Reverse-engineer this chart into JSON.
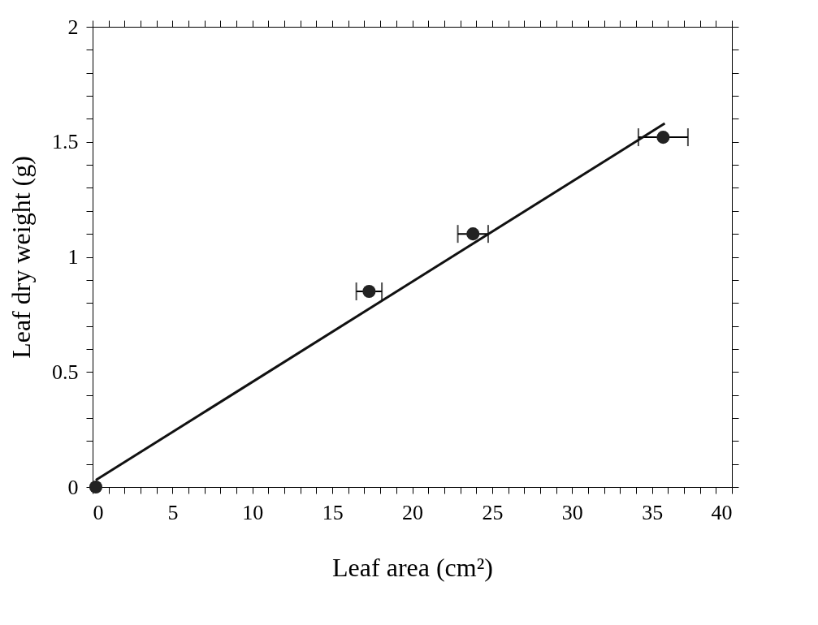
{
  "chart_data": {
    "type": "scatter",
    "xlabel": "Leaf area (cm²)",
    "ylabel": "Leaf dry weight (g)",
    "xlim": [
      0,
      40
    ],
    "ylim": [
      0,
      2
    ],
    "xticks": [
      0,
      {
        "value": 1,
        "label": null
      },
      {
        "value": 2,
        "label": null
      },
      {
        "value": 3,
        "label": null
      },
      {
        "value": 4,
        "label": null
      },
      5,
      {
        "value": 6,
        "label": null
      },
      {
        "value": 7,
        "label": null
      },
      {
        "value": 8,
        "label": null
      },
      {
        "value": 9,
        "label": null
      },
      10,
      {
        "value": 11,
        "label": null
      },
      {
        "value": 12,
        "label": null
      },
      {
        "value": 13,
        "label": null
      },
      {
        "value": 14,
        "label": null
      },
      15,
      {
        "value": 16,
        "label": null
      },
      {
        "value": 17,
        "label": null
      },
      {
        "value": 18,
        "label": null
      },
      {
        "value": 19,
        "label": null
      },
      20,
      {
        "value": 21,
        "label": null
      },
      {
        "value": 22,
        "label": null
      },
      {
        "value": 23,
        "label": null
      },
      {
        "value": 24,
        "label": null
      },
      25,
      {
        "value": 26,
        "label": null
      },
      {
        "value": 27,
        "label": null
      },
      {
        "value": 28,
        "label": null
      },
      {
        "value": 29,
        "label": null
      },
      30,
      {
        "value": 31,
        "label": null
      },
      {
        "value": 32,
        "label": null
      },
      {
        "value": 33,
        "label": null
      },
      {
        "value": 34,
        "label": null
      },
      35,
      {
        "value": 36,
        "label": null
      },
      {
        "value": 37,
        "label": null
      },
      {
        "value": 38,
        "label": null
      },
      {
        "value": 39,
        "label": null
      },
      40
    ],
    "yticks": [
      0,
      {
        "value": 0.1,
        "label": null
      },
      {
        "value": 0.2,
        "label": null
      },
      {
        "value": 0.3,
        "label": null
      },
      {
        "value": 0.4,
        "label": null
      },
      0.5,
      {
        "value": 0.6,
        "label": null
      },
      {
        "value": 0.7,
        "label": null
      },
      {
        "value": 0.8,
        "label": null
      },
      {
        "value": 0.9,
        "label": null
      },
      1,
      {
        "value": 1.1,
        "label": null
      },
      {
        "value": 1.2,
        "label": null
      },
      {
        "value": 1.3,
        "label": null
      },
      {
        "value": 1.4,
        "label": null
      },
      1.5,
      {
        "value": 1.6,
        "label": null
      },
      {
        "value": 1.7,
        "label": null
      },
      {
        "value": 1.8,
        "label": null
      },
      {
        "value": 1.9,
        "label": null
      },
      2
    ],
    "grid": false,
    "series": [
      {
        "marker": "circle",
        "color": "#222222",
        "x": [
          0.2,
          17.3,
          23.8,
          35.7
        ],
        "values": [
          0.0,
          0.85,
          1.1,
          1.52
        ],
        "xerrors": [
          null,
          0.8,
          0.95,
          1.55
        ]
      },
      {
        "type": "line",
        "marker": "none",
        "color": "#111111",
        "line_style": "solid",
        "x": [
          0.2,
          35.8
        ],
        "values": [
          0.03,
          1.58
        ]
      }
    ]
  }
}
